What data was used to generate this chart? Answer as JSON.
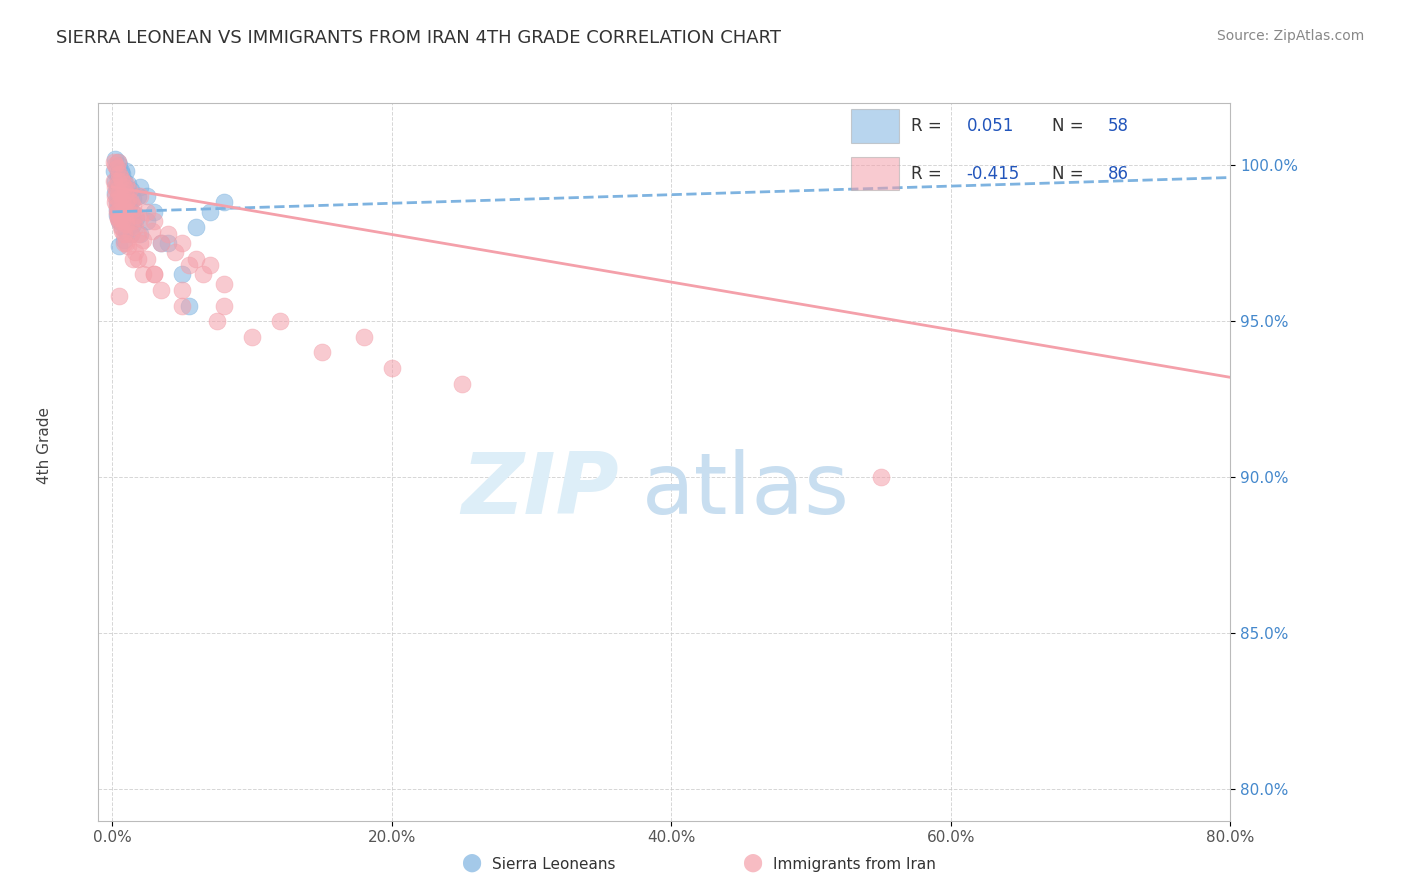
{
  "title": "SIERRA LEONEAN VS IMMIGRANTS FROM IRAN 4TH GRADE CORRELATION CHART",
  "source_text": "Source: ZipAtlas.com",
  "xlabel_vals": [
    0.0,
    20.0,
    40.0,
    60.0,
    80.0
  ],
  "ylabel_vals": [
    80.0,
    85.0,
    90.0,
    95.0,
    100.0
  ],
  "xlim": [
    -1.0,
    80.0
  ],
  "ylim": [
    79.0,
    102.0
  ],
  "ylabel": "4th Grade",
  "legend_labels": [
    "Sierra Leoneans",
    "Immigrants from Iran"
  ],
  "R_blue": 0.051,
  "N_blue": 58,
  "R_pink": -0.415,
  "N_pink": 86,
  "blue_color": "#7EB3E0",
  "pink_color": "#F4A0AA",
  "blue_scatter_x": [
    0.1,
    0.2,
    0.2,
    0.3,
    0.3,
    0.3,
    0.4,
    0.4,
    0.4,
    0.5,
    0.5,
    0.5,
    0.6,
    0.6,
    0.6,
    0.7,
    0.7,
    0.8,
    0.8,
    0.9,
    0.9,
    1.0,
    1.0,
    1.1,
    1.2,
    1.3,
    1.4,
    1.5,
    1.7,
    2.0,
    2.5,
    3.0,
    4.0,
    5.0,
    6.0,
    7.0,
    0.2,
    0.3,
    0.4,
    0.5,
    0.6,
    0.7,
    0.8,
    0.9,
    1.0,
    1.2,
    1.5,
    2.0,
    0.3,
    0.5,
    0.7,
    1.0,
    1.3,
    1.8,
    2.5,
    3.5,
    5.5,
    8.0
  ],
  "blue_scatter_y": [
    99.8,
    100.2,
    99.5,
    99.9,
    99.3,
    98.8,
    100.1,
    99.6,
    99.0,
    100.0,
    99.4,
    98.7,
    99.8,
    99.2,
    98.5,
    99.7,
    99.1,
    99.5,
    98.9,
    99.3,
    98.6,
    99.8,
    99.0,
    99.4,
    98.8,
    99.2,
    98.5,
    98.9,
    98.3,
    97.8,
    99.0,
    98.5,
    97.5,
    96.5,
    98.0,
    98.5,
    99.1,
    98.4,
    99.7,
    98.2,
    99.5,
    98.0,
    97.6,
    99.2,
    97.9,
    98.7,
    98.1,
    99.3,
    98.6,
    97.4,
    99.4,
    98.3,
    97.8,
    99.0,
    98.2,
    97.5,
    95.5,
    98.8
  ],
  "pink_scatter_x": [
    0.1,
    0.1,
    0.2,
    0.2,
    0.2,
    0.3,
    0.3,
    0.3,
    0.4,
    0.4,
    0.4,
    0.4,
    0.5,
    0.5,
    0.5,
    0.6,
    0.6,
    0.6,
    0.7,
    0.7,
    0.7,
    0.8,
    0.8,
    0.9,
    0.9,
    1.0,
    1.0,
    1.0,
    1.1,
    1.2,
    1.2,
    1.3,
    1.4,
    1.5,
    1.6,
    1.7,
    1.8,
    2.0,
    2.0,
    2.2,
    2.5,
    2.8,
    3.0,
    3.5,
    4.0,
    4.5,
    5.0,
    5.5,
    6.0,
    6.5,
    7.0,
    8.0,
    0.2,
    0.4,
    0.6,
    0.8,
    1.0,
    1.3,
    1.6,
    2.0,
    2.5,
    3.0,
    0.3,
    0.5,
    0.8,
    1.1,
    1.5,
    2.2,
    3.5,
    5.0,
    7.5,
    10.0,
    15.0,
    20.0,
    25.0,
    0.4,
    0.7,
    1.0,
    1.8,
    3.0,
    5.0,
    8.0,
    12.0,
    18.0,
    55.0,
    0.5
  ],
  "pink_scatter_y": [
    100.1,
    99.5,
    100.0,
    99.3,
    98.8,
    99.9,
    99.2,
    98.5,
    100.1,
    99.5,
    98.9,
    98.3,
    99.7,
    99.1,
    98.4,
    99.6,
    99.0,
    98.3,
    99.5,
    98.8,
    98.2,
    99.3,
    98.6,
    99.1,
    98.5,
    99.4,
    98.8,
    98.1,
    98.9,
    99.2,
    98.5,
    98.8,
    98.2,
    98.7,
    98.0,
    98.4,
    97.8,
    99.0,
    98.3,
    97.6,
    98.5,
    97.9,
    98.2,
    97.5,
    97.8,
    97.2,
    97.5,
    96.8,
    97.0,
    96.5,
    96.8,
    96.2,
    99.0,
    98.5,
    98.0,
    97.5,
    98.2,
    97.8,
    97.2,
    97.5,
    97.0,
    96.5,
    98.7,
    98.2,
    97.8,
    97.4,
    97.0,
    96.5,
    96.0,
    95.5,
    95.0,
    94.5,
    94.0,
    93.5,
    93.0,
    98.3,
    97.9,
    97.5,
    97.0,
    96.5,
    96.0,
    95.5,
    95.0,
    94.5,
    90.0,
    95.8
  ],
  "blue_trend_x": [
    0.0,
    80.0
  ],
  "blue_trend_y": [
    98.5,
    99.6
  ],
  "pink_trend_x": [
    0.0,
    80.0
  ],
  "pink_trend_y": [
    99.3,
    93.2
  ]
}
